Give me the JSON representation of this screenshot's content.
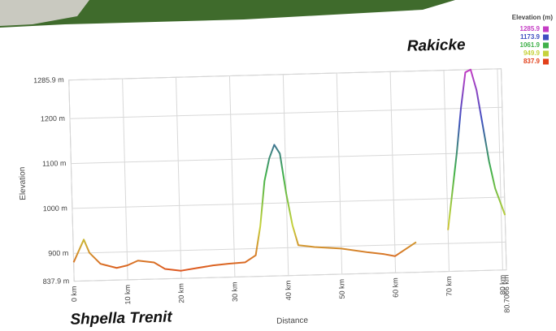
{
  "chart_data": {
    "type": "line",
    "x_label": "Distance",
    "y_label": "Elevation",
    "annotations": [
      "Rakicke",
      "Shpella Trenit"
    ],
    "x": [
      0,
      2,
      3,
      5,
      8,
      10,
      12,
      15,
      17,
      20,
      23,
      26,
      29,
      32,
      34,
      35,
      36,
      37,
      38,
      39,
      40,
      41,
      42,
      45,
      50,
      55,
      58,
      60,
      62,
      64,
      66,
      70,
      72,
      73,
      74,
      75,
      76,
      77,
      78,
      79,
      80.7066
    ],
    "series": [
      {
        "values": [
          880,
          930,
          900,
          875,
          865,
          870,
          880,
          875,
          860,
          855,
          860,
          865,
          868,
          870,
          885,
          950,
          1050,
          1100,
          1130,
          1110,
          1020,
          950,
          905,
          900,
          895,
          885,
          880,
          875,
          890,
          905,
          null,
          930,
          1100,
          1200,
          1280,
          1285.9,
          1240,
          1160,
          1080,
          1020,
          960
        ]
      }
    ],
    "xlim": [
      0,
      80.7066
    ],
    "xticks": [
      {
        "value": 0,
        "label": "0 km"
      },
      {
        "value": 10,
        "label": "10 km"
      },
      {
        "value": 20,
        "label": "20 km"
      },
      {
        "value": 30,
        "label": "30 km"
      },
      {
        "value": 40,
        "label": "40 km"
      },
      {
        "value": 50,
        "label": "50 km"
      },
      {
        "value": 60,
        "label": "60 km"
      },
      {
        "value": 70,
        "label": "70 km"
      },
      {
        "value": 80,
        "label": "80 km"
      },
      {
        "value": 80.7066,
        "label": "80.7066 km"
      }
    ],
    "ylim": [
      837.9,
      1285.9
    ],
    "yticks": [
      {
        "value": 837.9,
        "label": "837.9 m"
      },
      {
        "value": 900,
        "label": "900 m"
      },
      {
        "value": 1000,
        "label": "1000 m"
      },
      {
        "value": 1100,
        "label": "1100 m"
      },
      {
        "value": 1200,
        "label": "1200 m"
      },
      {
        "value": 1285.9,
        "label": "1285.9 m"
      }
    ],
    "grid": true,
    "color_scale": {
      "title": "Elevation (m)",
      "stops": [
        {
          "value": 1285.9,
          "color": "#c43cc4"
        },
        {
          "value": 1173.9,
          "color": "#3f4fc0"
        },
        {
          "value": 1061.9,
          "color": "#3fb04a"
        },
        {
          "value": 949.9,
          "color": "#c6d23c"
        },
        {
          "value": 837.9,
          "color": "#e2401a"
        }
      ]
    }
  }
}
